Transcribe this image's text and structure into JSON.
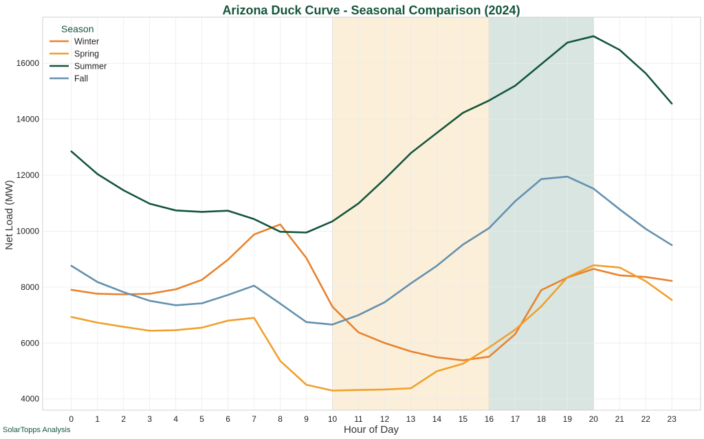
{
  "chart_data": {
    "type": "line",
    "title": "Arizona Duck Curve - Seasonal Comparison (2024)",
    "xlabel": "Hour of Day",
    "ylabel": "Net Load (MW)",
    "x": [
      0,
      1,
      2,
      3,
      4,
      5,
      6,
      7,
      8,
      9,
      10,
      11,
      12,
      13,
      14,
      15,
      16,
      17,
      18,
      19,
      20,
      21,
      22,
      23
    ],
    "xlim": [
      -1.1,
      24.1
    ],
    "ylim": [
      3600,
      17650
    ],
    "yticks": [
      4000,
      6000,
      8000,
      10000,
      12000,
      14000,
      16000
    ],
    "grid": true,
    "legend": {
      "title": "Season",
      "placement": "top-left"
    },
    "bands": [
      {
        "x_start": 10,
        "x_end": 16,
        "color": "#FBEFD9"
      },
      {
        "x_start": 16,
        "x_end": 20,
        "color": "#D8E5E1"
      }
    ],
    "series": [
      {
        "name": "Winter",
        "color": "#E8822D",
        "values": [
          7900,
          7760,
          7740,
          7760,
          7920,
          8260,
          8980,
          9880,
          10240,
          9040,
          7300,
          6380,
          6000,
          5700,
          5490,
          5380,
          5510,
          6320,
          7890,
          8340,
          8650,
          8420,
          8360,
          8220
        ]
      },
      {
        "name": "Spring",
        "color": "#F0A02B",
        "values": [
          6930,
          6730,
          6580,
          6440,
          6460,
          6550,
          6800,
          6900,
          5360,
          4510,
          4300,
          4320,
          4340,
          4380,
          4990,
          5260,
          5840,
          6480,
          7310,
          8350,
          8780,
          8700,
          8210,
          7540
        ]
      },
      {
        "name": "Summer",
        "color": "#14553A",
        "values": [
          12850,
          12040,
          11460,
          10980,
          10740,
          10690,
          10730,
          10430,
          9980,
          9950,
          10350,
          10990,
          11860,
          12790,
          13510,
          14230,
          14670,
          15200,
          15970,
          16740,
          16970,
          16480,
          15640,
          14560
        ]
      },
      {
        "name": "Fall",
        "color": "#6390AE",
        "values": [
          8760,
          8180,
          7820,
          7510,
          7350,
          7420,
          7720,
          8050,
          7410,
          6750,
          6660,
          7000,
          7460,
          8130,
          8760,
          9520,
          10110,
          11070,
          11860,
          11950,
          11520,
          10780,
          10080,
          9500
        ]
      }
    ]
  },
  "colors": {
    "title": "#14553A",
    "grid": "#EBEBEB",
    "spine": "#D0D0D0",
    "credit": "#14553A"
  },
  "footer": {
    "credit": "SolarTopps Analysis"
  }
}
